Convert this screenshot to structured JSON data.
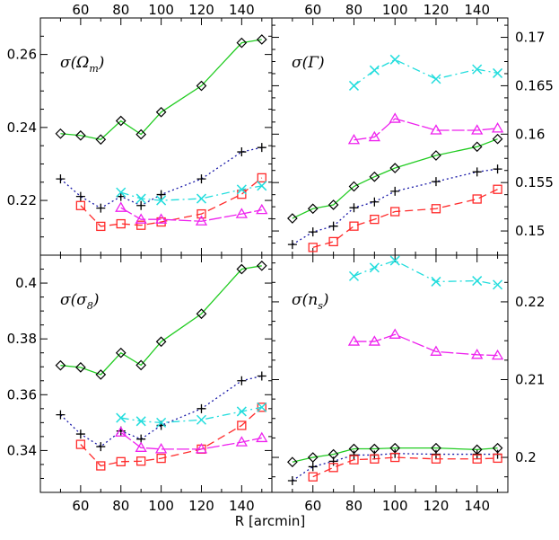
{
  "chart_data": {
    "type": "line",
    "xlabel": "R [arcmin]",
    "x_ticks": [
      60,
      80,
      100,
      120,
      140
    ],
    "xlim": [
      40,
      155
    ],
    "series_styles": [
      {
        "id": "green",
        "color": "#22cc22",
        "marker": "diamond",
        "dash": ""
      },
      {
        "id": "blue",
        "color": "#1a1aa8",
        "marker": "plus",
        "dash": "2,3"
      },
      {
        "id": "red",
        "color": "#ff2a2a",
        "marker": "square",
        "dash": "9,5"
      },
      {
        "id": "cyan",
        "color": "#22dddd",
        "marker": "cross",
        "dash": "9,4,2,4"
      },
      {
        "id": "magenta",
        "color": "#ee22ee",
        "marker": "triangle",
        "dash": "14,3"
      }
    ],
    "panels": [
      {
        "label": "σ(Ω",
        "label_sub": "m",
        "label_end": ")",
        "ylim": [
          0.205,
          0.27
        ],
        "y_ticks": [
          0.22,
          0.24,
          0.26
        ],
        "y_tick_labels": [
          "0.22",
          "0.24",
          "0.26"
        ],
        "y_side": "left",
        "series": [
          {
            "style": "green",
            "x": [
              50,
              60,
              70,
              80,
              90,
              100,
              120,
              140,
              150
            ],
            "y": [
              0.2383,
              0.2378,
              0.2367,
              0.2418,
              0.2381,
              0.2442,
              0.2514,
              0.2632,
              0.2641
            ]
          },
          {
            "style": "blue",
            "x": [
              50,
              60,
              70,
              80,
              90,
              100,
              120,
              140,
              150
            ],
            "y": [
              0.2259,
              0.2211,
              0.2179,
              0.2211,
              0.2186,
              0.2216,
              0.2259,
              0.2333,
              0.2345
            ]
          },
          {
            "style": "red",
            "x": [
              60,
              70,
              80,
              90,
              100,
              120,
              140,
              150
            ],
            "y": [
              0.2186,
              0.2129,
              0.2136,
              0.2132,
              0.2141,
              0.2163,
              0.2217,
              0.2262
            ]
          },
          {
            "style": "cyan",
            "x": [
              80,
              90,
              100,
              120,
              140,
              150
            ],
            "y": [
              0.2222,
              0.2205,
              0.22,
              0.2205,
              0.223,
              0.224
            ]
          },
          {
            "style": "magenta",
            "x": [
              80,
              90,
              100,
              120,
              140,
              150
            ],
            "y": [
              0.218,
              0.2148,
              0.2148,
              0.2143,
              0.2163,
              0.2174
            ]
          }
        ]
      },
      {
        "label": "σ(Γ",
        "label_sub": "",
        "label_end": ")",
        "ylim": [
          0.1475,
          0.172
        ],
        "y_ticks": [
          0.15,
          0.155,
          0.16,
          0.165,
          0.17
        ],
        "y_tick_labels": [
          "0.15",
          "0.155",
          "0.16",
          "0.165",
          "0.17"
        ],
        "y_side": "right",
        "series": [
          {
            "style": "green",
            "x": [
              50,
              60,
              70,
              80,
              90,
              100,
              120,
              140,
              150
            ],
            "y": [
              0.1513,
              0.1523,
              0.1527,
              0.1546,
              0.1556,
              0.1565,
              0.1578,
              0.1587,
              0.1595
            ]
          },
          {
            "style": "blue",
            "x": [
              50,
              60,
              70,
              80,
              90,
              100,
              120,
              140,
              150
            ],
            "y": [
              0.1486,
              0.1499,
              0.1505,
              0.1524,
              0.153,
              0.1541,
              0.1551,
              0.1561,
              0.1564
            ]
          },
          {
            "style": "red",
            "x": [
              60,
              70,
              80,
              90,
              100,
              120,
              140,
              150
            ],
            "y": [
              0.1483,
              0.1489,
              0.1505,
              0.1512,
              0.152,
              0.1523,
              0.1533,
              0.1543
            ]
          },
          {
            "style": "cyan",
            "x": [
              80,
              90,
              100,
              120,
              140,
              150
            ],
            "y": [
              0.165,
              0.1666,
              0.1677,
              0.1657,
              0.1667,
              0.1663
            ]
          },
          {
            "style": "magenta",
            "x": [
              80,
              90,
              100,
              120,
              140,
              150
            ],
            "y": [
              0.1594,
              0.1597,
              0.1616,
              0.1604,
              0.1604,
              0.1606
            ]
          }
        ]
      },
      {
        "label": "σ(σ",
        "label_sub": "8",
        "label_end": ")",
        "ylim": [
          0.325,
          0.41
        ],
        "y_ticks": [
          0.34,
          0.36,
          0.38,
          0.4
        ],
        "y_tick_labels": [
          "0.34",
          "0.36",
          "0.38",
          "0.4"
        ],
        "y_side": "left",
        "series": [
          {
            "style": "green",
            "x": [
              50,
              60,
              70,
              80,
              90,
              100,
              120,
              140,
              150
            ],
            "y": [
              0.3705,
              0.3698,
              0.3672,
              0.375,
              0.3706,
              0.379,
              0.389,
              0.405,
              0.4062
            ]
          },
          {
            "style": "blue",
            "x": [
              50,
              60,
              70,
              80,
              90,
              100,
              120,
              140,
              150
            ],
            "y": [
              0.3528,
              0.3459,
              0.3414,
              0.347,
              0.3441,
              0.349,
              0.355,
              0.365,
              0.3667
            ]
          },
          {
            "style": "red",
            "x": [
              60,
              70,
              80,
              90,
              100,
              120,
              140,
              150
            ],
            "y": [
              0.3422,
              0.3345,
              0.336,
              0.3362,
              0.3372,
              0.3405,
              0.349,
              0.3555
            ]
          },
          {
            "style": "cyan",
            "x": [
              80,
              90,
              100,
              120,
              140,
              150
            ],
            "y": [
              0.3517,
              0.3505,
              0.35,
              0.351,
              0.354,
              0.3555
            ]
          },
          {
            "style": "magenta",
            "x": [
              80,
              90,
              100,
              120,
              140,
              150
            ],
            "y": [
              0.3465,
              0.341,
              0.3405,
              0.3405,
              0.343,
              0.3445
            ]
          }
        ]
      },
      {
        "label": "σ(n",
        "label_sub": "s",
        "label_end": ")",
        "ylim": [
          0.1955,
          0.226
        ],
        "y_ticks": [
          0.2,
          0.21,
          0.22
        ],
        "y_tick_labels": [
          "0.2",
          "0.21",
          "0.22"
        ],
        "y_side": "right",
        "series": [
          {
            "style": "green",
            "x": [
              50,
              60,
              70,
              80,
              90,
              100,
              120,
              140,
              150
            ],
            "y": [
              0.1994,
              0.2,
              0.2004,
              0.2011,
              0.2011,
              0.2012,
              0.2012,
              0.201,
              0.2012
            ]
          },
          {
            "style": "blue",
            "x": [
              50,
              60,
              70,
              80,
              90,
              100,
              120,
              140,
              150
            ],
            "y": [
              0.197,
              0.1988,
              0.1995,
              0.2003,
              0.2003,
              0.2005,
              0.2004,
              0.2004,
              0.2004
            ]
          },
          {
            "style": "red",
            "x": [
              60,
              70,
              80,
              90,
              100,
              120,
              140,
              150
            ],
            "y": [
              0.1975,
              0.1987,
              0.1997,
              0.1998,
              0.2,
              0.1998,
              0.1998,
              0.1999
            ]
          },
          {
            "style": "cyan",
            "x": [
              80,
              90,
              100,
              120,
              140,
              150
            ],
            "y": [
              0.2233,
              0.2244,
              0.2253,
              0.2226,
              0.2227,
              0.2222
            ]
          },
          {
            "style": "magenta",
            "x": [
              80,
              90,
              100,
              120,
              140,
              150
            ],
            "y": [
              0.2149,
              0.2149,
              0.2158,
              0.2136,
              0.2132,
              0.2131
            ]
          }
        ]
      }
    ]
  }
}
